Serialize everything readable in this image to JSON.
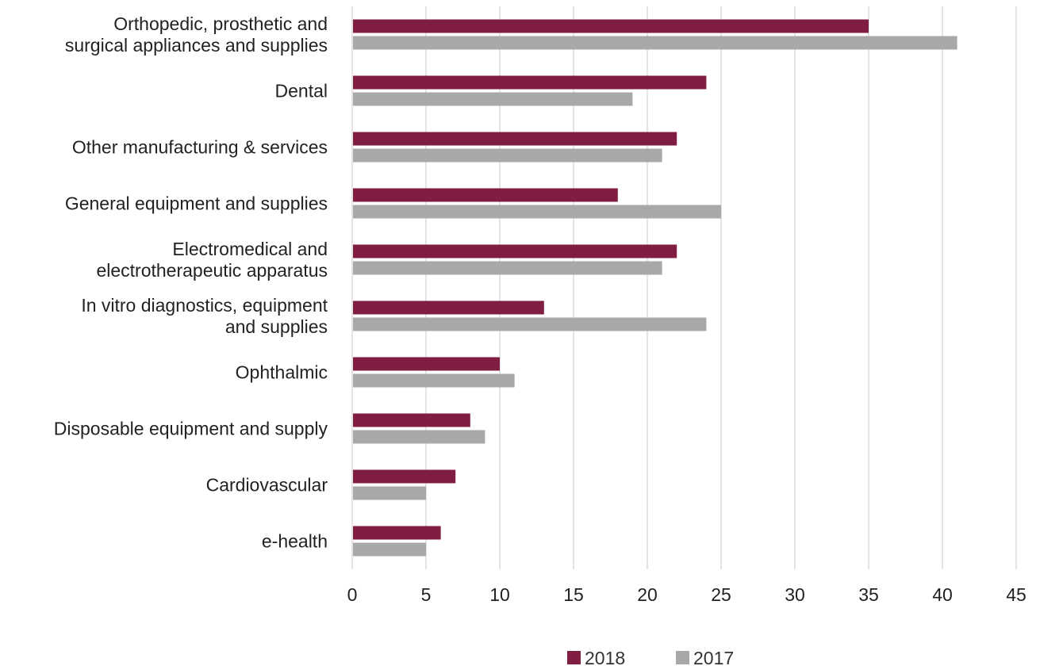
{
  "chart_data": {
    "type": "bar",
    "orientation": "horizontal",
    "categories": [
      [
        "Orthopedic, prosthetic and",
        "surgical appliances and supplies"
      ],
      [
        "Dental"
      ],
      [
        "Other manufacturing & services"
      ],
      [
        "General equipment and supplies"
      ],
      [
        "Electromedical and",
        "electrotherapeutic apparatus"
      ],
      [
        "In vitro diagnostics, equipment",
        "and supplies"
      ],
      [
        "Ophthalmic"
      ],
      [
        "Disposable equipment and supply"
      ],
      [
        "Cardiovascular"
      ],
      [
        "e-health"
      ]
    ],
    "series": [
      {
        "name": "2018",
        "color": "#7f1d42",
        "values": [
          35,
          24,
          22,
          18,
          22,
          13,
          10,
          8,
          7,
          6
        ]
      },
      {
        "name": "2017",
        "color": "#a8a8ab",
        "values": [
          41,
          19,
          21,
          25,
          21,
          24,
          11,
          9,
          5,
          5
        ]
      }
    ],
    "xticks": [
      "0",
      "5",
      "10",
      "15",
      "20",
      "25",
      "30",
      "35",
      "40",
      "45"
    ],
    "xlim": [
      0,
      45
    ],
    "grid": "vertical",
    "legend_position": "bottom-center",
    "gridline_color": "#c8c8c8",
    "title": "",
    "xlabel": "",
    "ylabel": ""
  }
}
